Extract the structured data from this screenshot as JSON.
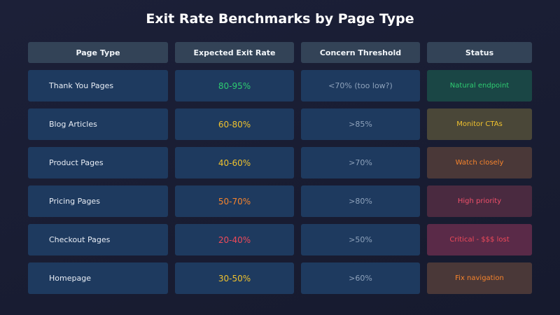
{
  "header": {
    "title": "Exit Rate Benchmarks by Page Type"
  },
  "table": {
    "columns": [
      "Page Type",
      "Expected Exit Rate",
      "Concern Threshold",
      "Status"
    ],
    "rows": [
      [
        "Thank You Pages",
        "80-95%",
        "<70% (too low?)",
        "Natural endpoint"
      ],
      [
        "Blog Articles",
        "60-80%",
        ">85%",
        "Monitor CTAs"
      ],
      [
        "Product Pages",
        "40-60%",
        ">70%",
        "Watch closely"
      ],
      [
        "Pricing Pages",
        "50-70%",
        ">80%",
        "High priority"
      ],
      [
        "Checkout Pages",
        "20-40%",
        ">50%",
        "Critical - $$$ lost"
      ],
      [
        "Homepage",
        "30-50%",
        ">60%",
        "Fix navigation"
      ]
    ]
  }
}
